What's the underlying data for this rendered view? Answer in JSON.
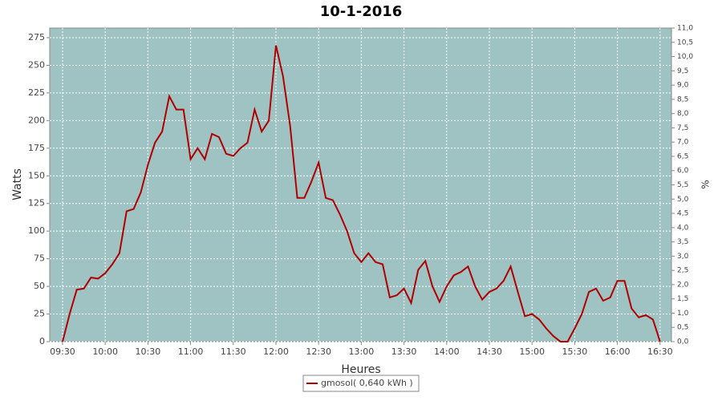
{
  "chart_data": {
    "type": "line",
    "title": "10-1-2016",
    "xlabel": "Heures",
    "ylabel": "Watts",
    "y2label": "%",
    "x": [
      "09:30",
      "09:35",
      "09:40",
      "09:45",
      "09:50",
      "09:55",
      "10:00",
      "10:05",
      "10:10",
      "10:15",
      "10:20",
      "10:25",
      "10:30",
      "10:35",
      "10:40",
      "10:45",
      "10:50",
      "10:55",
      "11:00",
      "11:05",
      "11:10",
      "11:15",
      "11:20",
      "11:25",
      "11:30",
      "11:35",
      "11:40",
      "11:45",
      "11:50",
      "11:55",
      "12:00",
      "12:05",
      "12:10",
      "12:15",
      "12:20",
      "12:25",
      "12:30",
      "12:35",
      "12:40",
      "12:45",
      "12:50",
      "12:55",
      "13:00",
      "13:05",
      "13:10",
      "13:15",
      "13:20",
      "13:25",
      "13:30",
      "13:35",
      "13:40",
      "13:45",
      "13:50",
      "13:55",
      "14:00",
      "14:05",
      "14:10",
      "14:15",
      "14:20",
      "14:25",
      "14:30",
      "14:35",
      "14:40",
      "14:45",
      "14:50",
      "14:55",
      "15:00",
      "15:05",
      "15:10",
      "15:15",
      "15:20",
      "15:25",
      "15:30",
      "15:35",
      "15:40",
      "15:45",
      "15:50",
      "15:55",
      "16:00",
      "16:05",
      "16:10",
      "16:15",
      "16:20",
      "16:25",
      "16:30"
    ],
    "series": [
      {
        "name": "gmosol( 0,640 kWh )",
        "color": "#b00000",
        "values": [
          0,
          25,
          47,
          48,
          58,
          57,
          62,
          70,
          80,
          118,
          120,
          135,
          160,
          180,
          190,
          222,
          210,
          210,
          165,
          175,
          165,
          188,
          185,
          170,
          168,
          175,
          180,
          210,
          190,
          200,
          268,
          240,
          195,
          130,
          130,
          145,
          162,
          130,
          128,
          115,
          100,
          80,
          72,
          80,
          72,
          70,
          40,
          42,
          48,
          35,
          65,
          73,
          50,
          36,
          50,
          60,
          63,
          68,
          50,
          38,
          45,
          48,
          55,
          68,
          45,
          23,
          25,
          20,
          12,
          5,
          0,
          0,
          12,
          25,
          45,
          48,
          37,
          40,
          55,
          55,
          30,
          22,
          24,
          20,
          0
        ]
      }
    ],
    "xlim": [
      "09:21",
      "16:38"
    ],
    "xticks": [
      "09:30",
      "10:00",
      "10:30",
      "11:00",
      "11:30",
      "12:00",
      "12:30",
      "13:00",
      "13:30",
      "14:00",
      "14:30",
      "15:00",
      "15:30",
      "16:00",
      "16:30"
    ],
    "ylim": [
      0,
      283.7
    ],
    "yticks": [
      0,
      25,
      50,
      75,
      100,
      125,
      150,
      175,
      200,
      225,
      250,
      275
    ],
    "y2lim": [
      0,
      11
    ],
    "y2ticks": [
      {
        "value": 0,
        "label": "0,0"
      },
      {
        "value": 0.5,
        "label": "0,5"
      },
      {
        "value": 1,
        "label": "1,0"
      },
      {
        "value": 1.5,
        "label": "1,5"
      },
      {
        "value": 2,
        "label": "2,0"
      },
      {
        "value": 2.5,
        "label": "2,5"
      },
      {
        "value": 3,
        "label": "3,0"
      },
      {
        "value": 3.5,
        "label": "3,5"
      },
      {
        "value": 4,
        "label": "4,0"
      },
      {
        "value": 4.5,
        "label": "4,5"
      },
      {
        "value": 5,
        "label": "5,0"
      },
      {
        "value": 5.5,
        "label": "5,5"
      },
      {
        "value": 6,
        "label": "6,0"
      },
      {
        "value": 6.5,
        "label": "6,5"
      },
      {
        "value": 7,
        "label": "7,0"
      },
      {
        "value": 7.5,
        "label": "7,5"
      },
      {
        "value": 8,
        "label": "8,0"
      },
      {
        "value": 8.5,
        "label": "8,5"
      },
      {
        "value": 9,
        "label": "9,0"
      },
      {
        "value": 9.5,
        "label": "9,5"
      },
      {
        "value": 10,
        "label": "10,0"
      },
      {
        "value": 10.5,
        "label": "10,5"
      },
      {
        "value": 11,
        "label": "11,0"
      }
    ],
    "grid": true,
    "background": "#9fc3c3",
    "legend": "bottom"
  }
}
